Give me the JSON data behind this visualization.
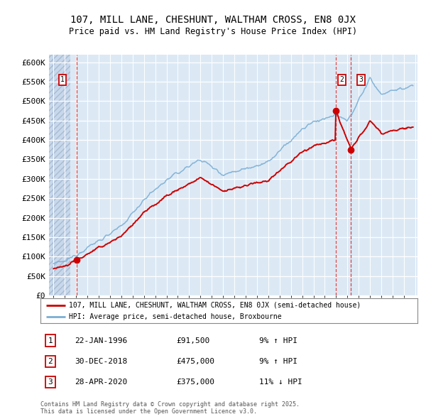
{
  "title": "107, MILL LANE, CHESHUNT, WALTHAM CROSS, EN8 0JX",
  "subtitle": "Price paid vs. HM Land Registry's House Price Index (HPI)",
  "ylim": [
    0,
    620000
  ],
  "yticks": [
    0,
    50000,
    100000,
    150000,
    200000,
    250000,
    300000,
    350000,
    400000,
    450000,
    500000,
    550000,
    600000
  ],
  "ytick_labels": [
    "£0",
    "£50K",
    "£100K",
    "£150K",
    "£200K",
    "£250K",
    "£300K",
    "£350K",
    "£400K",
    "£450K",
    "£500K",
    "£550K",
    "£600K"
  ],
  "xlim_start": 1993.6,
  "xlim_end": 2026.2,
  "bg_color": "#dce9f5",
  "hatch_color": "#c8d8ec",
  "grid_color": "#e8f0f8",
  "red_line_color": "#cc0000",
  "blue_line_color": "#7aaed4",
  "sale1_year": 1996.06,
  "sale1_price": 91500,
  "sale2_year": 2018.99,
  "sale2_price": 475000,
  "sale3_year": 2020.32,
  "sale3_price": 375000,
  "legend_label1": "107, MILL LANE, CHESHUNT, WALTHAM CROSS, EN8 0JX (semi-detached house)",
  "legend_label2": "HPI: Average price, semi-detached house, Broxbourne",
  "table_rows": [
    {
      "num": "1",
      "date": "22-JAN-1996",
      "price": "£91,500",
      "change": "9% ↑ HPI"
    },
    {
      "num": "2",
      "date": "30-DEC-2018",
      "price": "£475,000",
      "change": "9% ↑ HPI"
    },
    {
      "num": "3",
      "date": "28-APR-2020",
      "price": "£375,000",
      "change": "11% ↓ HPI"
    }
  ],
  "footer": "Contains HM Land Registry data © Crown copyright and database right 2025.\nThis data is licensed under the Open Government Licence v3.0."
}
